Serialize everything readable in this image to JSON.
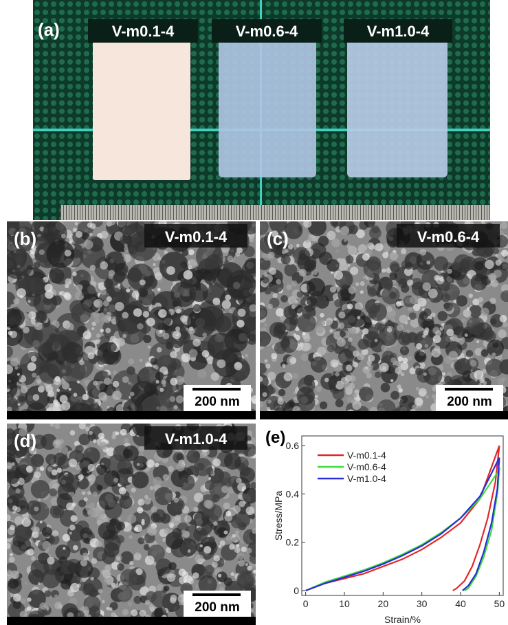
{
  "panel_a": {
    "label": "(a)",
    "samples": [
      "V-m0.1-4",
      "V-m0.6-4",
      "V-m1.0-4"
    ]
  },
  "sem": [
    {
      "label": "(b)",
      "sample": "V-m0.1-4",
      "scale_bar": "200 nm"
    },
    {
      "label": "(c)",
      "sample": "V-m0.6-4",
      "scale_bar": "200 nm"
    },
    {
      "label": "(d)",
      "sample": "V-m1.0-4",
      "scale_bar": "200 nm"
    }
  ],
  "chart_data": {
    "type": "line",
    "panel_label": "(e)",
    "x_label": "Strain/%",
    "y_label": "Stress/MPa",
    "xlim": [
      -1,
      51
    ],
    "ylim": [
      -0.02,
      0.64
    ],
    "xticks": [
      0,
      10,
      20,
      30,
      40,
      50
    ],
    "yticks": [
      0,
      0.2,
      0.4,
      0.6
    ],
    "series": [
      {
        "name": "V-m0.1-4",
        "color": "#e0282a",
        "x": [
          0,
          5,
          10,
          15,
          20,
          25,
          30,
          35,
          40,
          45,
          50,
          49,
          47,
          45,
          43,
          41,
          39,
          38
        ],
        "values": [
          0,
          0.03,
          0.05,
          0.07,
          0.1,
          0.13,
          0.17,
          0.22,
          0.28,
          0.38,
          0.6,
          0.45,
          0.3,
          0.19,
          0.1,
          0.04,
          0.01,
          0
        ]
      },
      {
        "name": "V-m0.6-4",
        "color": "#3ddc3d",
        "x": [
          0,
          5,
          10,
          15,
          20,
          25,
          30,
          35,
          40,
          45,
          50,
          49.5,
          48,
          46,
          44,
          42,
          41
        ],
        "values": [
          0,
          0.035,
          0.06,
          0.085,
          0.115,
          0.15,
          0.19,
          0.24,
          0.3,
          0.38,
          0.5,
          0.4,
          0.25,
          0.14,
          0.06,
          0.01,
          0
        ]
      },
      {
        "name": "V-m1.0-4",
        "color": "#2a2ad8",
        "x": [
          0,
          5,
          10,
          15,
          20,
          25,
          30,
          35,
          40,
          45,
          50,
          49.5,
          48,
          46,
          44,
          42,
          40.5
        ],
        "values": [
          0,
          0.03,
          0.055,
          0.08,
          0.11,
          0.145,
          0.185,
          0.235,
          0.3,
          0.39,
          0.55,
          0.42,
          0.28,
          0.16,
          0.07,
          0.02,
          0
        ]
      }
    ]
  }
}
